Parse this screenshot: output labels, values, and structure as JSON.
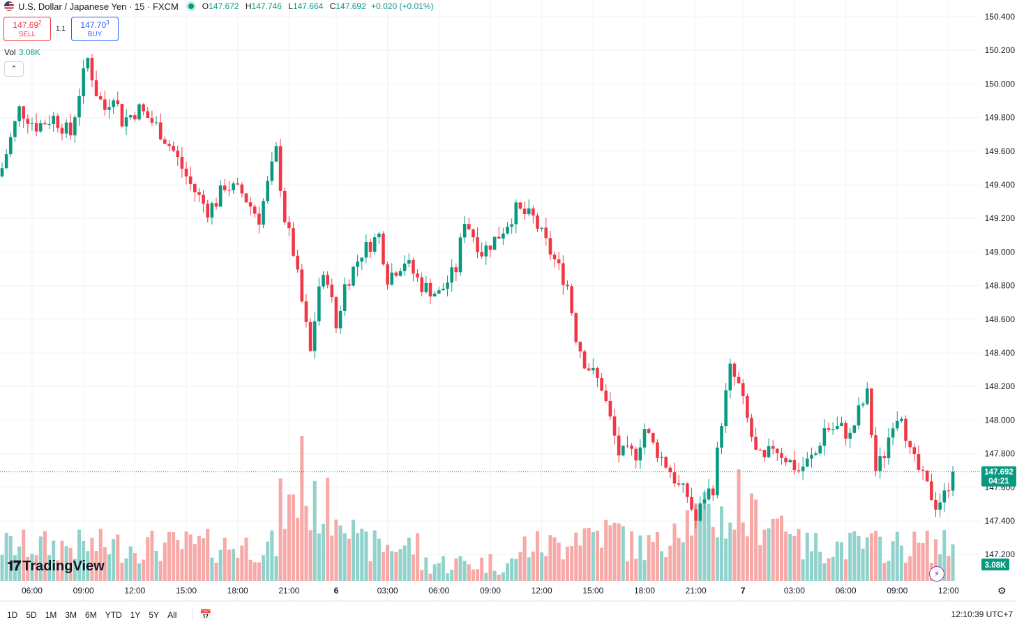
{
  "header": {
    "symbol_title": "U.S. Dollar / Japanese Yen · 15 · FXCM",
    "ohlc": [
      {
        "k": "O",
        "v": "147.672"
      },
      {
        "k": "H",
        "v": "147.746"
      },
      {
        "k": "L",
        "v": "147.664"
      },
      {
        "k": "C",
        "v": "147.692"
      }
    ],
    "change": "+0.020 (+0.01%)"
  },
  "trade": {
    "sell_price_main": "147.69",
    "sell_price_sup": "2",
    "sell_label": "SELL",
    "buy_price_main": "147.70",
    "buy_price_sup": "3",
    "buy_label": "BUY",
    "spread": "1.1"
  },
  "volume": {
    "label": "Vol",
    "value": "3.08K",
    "badge": "3.08K"
  },
  "price_badge": {
    "price": "147.692",
    "countdown": "04:21"
  },
  "ranges": [
    "1D",
    "5D",
    "1M",
    "3M",
    "6M",
    "YTD",
    "1Y",
    "5Y",
    "All"
  ],
  "clock": "12:10:39 UTC+7",
  "brand": "TradingView",
  "icons": {
    "collapse": "chevron-up-icon",
    "calendar": "calendar-icon",
    "settings": "gear-icon",
    "alert": "lightning-icon"
  },
  "colors": {
    "up": "#089981",
    "down": "#f23645",
    "vol_up": "#92d2cc",
    "vol_down": "#f7a9a7"
  },
  "chart_data": {
    "type": "candlestick",
    "interval": "15",
    "y_ticks": [
      "150.400",
      "150.200",
      "150.000",
      "149.800",
      "149.600",
      "149.400",
      "149.200",
      "149.000",
      "148.800",
      "148.600",
      "148.400",
      "148.200",
      "148.000",
      "147.800",
      "147.600",
      "147.400",
      "147.200"
    ],
    "x_ticks": [
      "06:00",
      "09:00",
      "12:00",
      "15:00",
      "18:00",
      "21:00",
      "6",
      "03:00",
      "06:00",
      "09:00",
      "12:00",
      "15:00",
      "18:00",
      "21:00",
      "7",
      "03:00",
      "06:00",
      "09:00",
      "12:00"
    ],
    "last_price": 147.692,
    "anchors": [
      [
        0,
        149.5
      ],
      [
        4,
        149.85
      ],
      [
        8,
        149.75
      ],
      [
        12,
        149.8
      ],
      [
        16,
        149.7
      ],
      [
        18,
        149.95
      ],
      [
        20,
        150.15
      ],
      [
        22,
        149.95
      ],
      [
        24,
        149.85
      ],
      [
        26,
        149.95
      ],
      [
        28,
        149.78
      ],
      [
        32,
        149.85
      ],
      [
        36,
        149.75
      ],
      [
        40,
        149.6
      ],
      [
        44,
        149.4
      ],
      [
        48,
        149.25
      ],
      [
        50,
        149.3
      ],
      [
        52,
        149.4
      ],
      [
        56,
        149.35
      ],
      [
        60,
        149.2
      ],
      [
        64,
        149.6
      ],
      [
        66,
        149.2
      ],
      [
        68,
        149.0
      ],
      [
        70,
        148.7
      ],
      [
        72,
        148.4
      ],
      [
        74,
        148.8
      ],
      [
        76,
        148.85
      ],
      [
        78,
        148.55
      ],
      [
        80,
        148.8
      ],
      [
        84,
        149.0
      ],
      [
        88,
        149.1
      ],
      [
        90,
        148.85
      ],
      [
        94,
        148.95
      ],
      [
        98,
        148.8
      ],
      [
        102,
        148.75
      ],
      [
        106,
        148.9
      ],
      [
        108,
        149.2
      ],
      [
        112,
        149.0
      ],
      [
        116,
        149.1
      ],
      [
        120,
        149.25
      ],
      [
        124,
        149.2
      ],
      [
        128,
        149.0
      ],
      [
        132,
        148.8
      ],
      [
        134,
        148.5
      ],
      [
        136,
        148.35
      ],
      [
        140,
        148.2
      ],
      [
        142,
        148.0
      ],
      [
        144,
        147.8
      ],
      [
        148,
        147.8
      ],
      [
        150,
        147.95
      ],
      [
        152,
        147.85
      ],
      [
        156,
        147.7
      ],
      [
        158,
        147.6
      ],
      [
        160,
        147.55
      ],
      [
        162,
        147.4
      ],
      [
        164,
        147.55
      ],
      [
        166,
        147.6
      ],
      [
        168,
        148.0
      ],
      [
        170,
        148.3
      ],
      [
        172,
        148.2
      ],
      [
        174,
        148.0
      ],
      [
        176,
        147.8
      ],
      [
        178,
        147.75
      ],
      [
        180,
        147.85
      ],
      [
        184,
        147.75
      ],
      [
        186,
        147.7
      ],
      [
        188,
        147.75
      ],
      [
        190,
        147.8
      ],
      [
        192,
        147.95
      ],
      [
        196,
        147.95
      ],
      [
        198,
        147.9
      ],
      [
        200,
        148.05
      ],
      [
        202,
        148.15
      ],
      [
        204,
        147.7
      ],
      [
        206,
        147.8
      ],
      [
        208,
        148.0
      ],
      [
        210,
        148.05
      ],
      [
        212,
        147.8
      ],
      [
        214,
        147.7
      ],
      [
        216,
        147.6
      ],
      [
        218,
        147.5
      ],
      [
        220,
        147.55
      ],
      [
        222,
        147.692
      ]
    ]
  }
}
